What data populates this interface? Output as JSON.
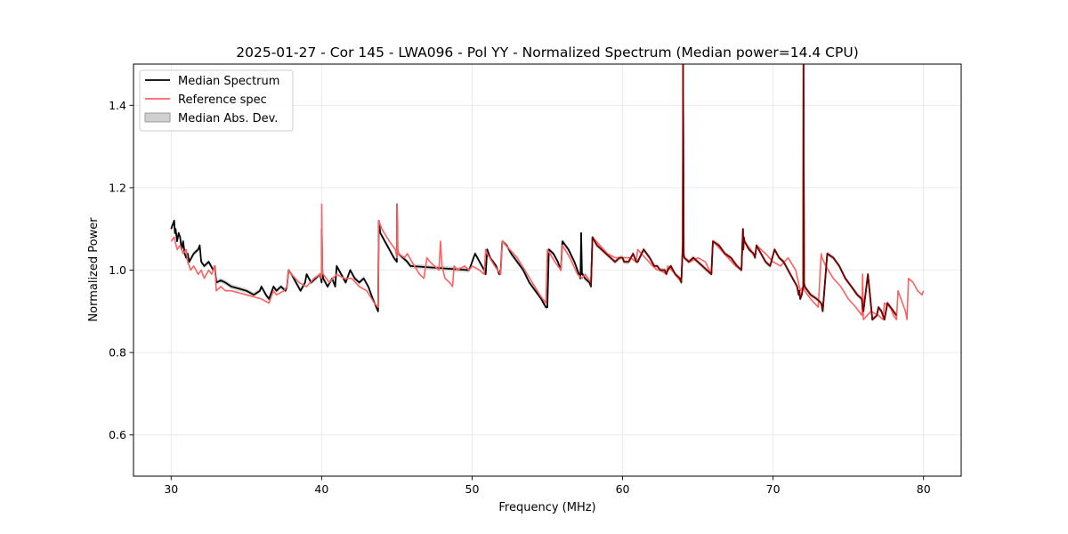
{
  "chart_data": {
    "type": "line",
    "title": "2025-01-27 - Cor 145 - LWA096 - Pol YY - Normalized Spectrum (Median power=14.4 CPU)",
    "xlabel": "Frequency (MHz)",
    "ylabel": "Normalized Power",
    "xlim": [
      27.5,
      82.5
    ],
    "ylim": [
      0.5,
      1.5
    ],
    "xticks": [
      30,
      40,
      50,
      60,
      70,
      80
    ],
    "yticks": [
      0.6,
      0.8,
      1.0,
      1.2,
      1.4
    ],
    "xtick_labels": [
      "30",
      "40",
      "50",
      "60",
      "70",
      "80"
    ],
    "ytick_labels": [
      "0.6",
      "0.8",
      "1.0",
      "1.2",
      "1.4"
    ],
    "grid": true,
    "legend_position": "top-left",
    "legend": {
      "median": "Median Spectrum",
      "reference": "Reference spec",
      "mad": "Median Abs. Dev."
    },
    "colors": {
      "median": "#000000",
      "reference": "#ff6060",
      "mad": "#b0b0b0",
      "overlap": "#7a0000"
    },
    "series": [
      {
        "name": "Median Spectrum",
        "x": [
          30.0,
          30.1,
          30.2,
          30.25,
          30.3,
          30.4,
          30.5,
          30.6,
          30.7,
          30.8,
          30.9,
          31.0,
          31.1,
          31.2,
          31.5,
          31.8,
          31.9,
          32.0,
          32.2,
          32.5,
          32.8,
          32.9,
          33.0,
          33.3,
          33.6,
          34.0,
          34.5,
          35.0,
          35.5,
          35.9,
          36.0,
          36.3,
          36.5,
          36.8,
          37.0,
          37.3,
          37.6,
          37.7,
          37.8,
          38.0,
          38.3,
          38.6,
          38.9,
          39.0,
          39.3,
          39.6,
          39.9,
          40.0,
          40.01,
          40.05,
          40.1,
          40.4,
          40.7,
          40.9,
          41.0,
          41.3,
          41.6,
          41.9,
          42.2,
          42.5,
          42.8,
          43.1,
          43.4,
          43.75,
          43.8,
          43.9,
          44.2,
          44.5,
          44.8,
          45.0,
          45.01,
          45.05,
          45.1,
          45.4,
          45.7,
          45.9,
          49.8,
          50.0,
          50.2,
          50.5,
          50.8,
          50.9,
          51.0,
          51.2,
          51.4,
          51.6,
          51.8,
          51.9,
          52.0,
          52.3,
          52.6,
          53.0,
          53.4,
          53.8,
          54.2,
          54.6,
          54.9,
          55.0,
          55.1,
          55.4,
          55.7,
          55.9,
          56.0,
          56.4,
          56.8,
          57.1,
          57.2,
          57.25,
          57.3,
          57.35,
          57.5,
          57.8,
          57.9,
          58.0,
          58.3,
          58.6,
          58.9,
          59.2,
          59.5,
          59.8,
          60.0,
          60.1,
          60.4,
          60.7,
          60.9,
          61.0,
          61.4,
          61.8,
          62.1,
          62.3,
          62.5,
          62.8,
          62.9,
          63.0,
          63.2,
          63.5,
          63.8,
          63.9,
          64.0,
          64.02,
          64.06,
          64.1,
          64.4,
          64.7,
          65.0,
          65.3,
          65.6,
          65.9,
          66.0,
          66.4,
          66.8,
          67.2,
          67.6,
          67.9,
          68.0,
          68.02,
          68.06,
          68.1,
          68.4,
          68.7,
          68.8,
          68.9,
          69.2,
          69.5,
          69.8,
          70.1,
          70.4,
          70.7,
          71.0,
          71.3,
          71.6,
          71.7,
          71.75,
          71.8,
          71.9,
          72.0,
          72.02,
          72.06,
          72.1,
          72.5,
          72.9,
          73.2,
          73.25,
          73.3,
          73.6,
          74.0,
          74.4,
          74.8,
          75.2,
          75.6,
          75.9,
          75.95,
          76.0,
          76.3,
          76.6,
          76.9,
          77.0,
          77.2,
          77.3,
          77.4,
          77.6,
          77.8,
          78.0,
          78.2
        ],
        "y": [
          1.1,
          1.11,
          1.12,
          1.09,
          1.1,
          1.07,
          1.09,
          1.08,
          1.05,
          1.07,
          1.04,
          1.03,
          1.04,
          1.02,
          1.04,
          1.05,
          1.06,
          1.02,
          1.01,
          1.02,
          1.0,
          1.01,
          0.97,
          0.975,
          0.97,
          0.96,
          0.955,
          0.95,
          0.94,
          0.95,
          0.96,
          0.94,
          0.93,
          0.96,
          0.95,
          0.96,
          0.95,
          0.96,
          1.0,
          0.99,
          0.97,
          0.95,
          0.97,
          0.99,
          0.97,
          0.98,
          0.99,
          0.97,
          1.1,
          1.0,
          0.98,
          0.96,
          0.98,
          0.96,
          1.01,
          0.99,
          0.97,
          1.0,
          0.98,
          0.97,
          0.98,
          0.96,
          0.93,
          0.9,
          1.12,
          1.09,
          1.07,
          1.05,
          1.03,
          1.02,
          1.16,
          1.05,
          1.04,
          1.03,
          1.02,
          1.01,
          1.0,
          1.02,
          1.04,
          1.02,
          1.0,
          0.99,
          1.05,
          1.03,
          1.02,
          1.01,
          0.99,
          1.0,
          1.07,
          1.06,
          1.04,
          1.02,
          1.0,
          0.97,
          0.95,
          0.93,
          0.91,
          0.91,
          1.05,
          1.04,
          1.02,
          1.0,
          1.07,
          1.05,
          1.02,
          0.99,
          0.98,
          1.09,
          0.99,
          0.99,
          0.98,
          0.97,
          0.96,
          1.08,
          1.06,
          1.05,
          1.04,
          1.03,
          1.02,
          1.03,
          1.03,
          1.02,
          1.02,
          1.04,
          1.02,
          1.02,
          1.05,
          1.03,
          1.01,
          1.01,
          1.0,
          1.0,
          0.99,
          1.0,
          1.01,
          0.99,
          0.98,
          0.97,
          1.06,
          1.5,
          1.04,
          1.03,
          1.02,
          1.03,
          1.02,
          1.01,
          1.0,
          0.99,
          1.07,
          1.06,
          1.04,
          1.03,
          1.01,
          1.0,
          1.1,
          1.05,
          1.08,
          1.07,
          1.05,
          1.04,
          1.03,
          1.06,
          1.04,
          1.02,
          1.01,
          1.05,
          1.03,
          1.02,
          1.0,
          0.98,
          0.96,
          0.94,
          0.95,
          0.93,
          0.94,
          0.96,
          1.5,
          0.97,
          0.96,
          0.94,
          0.93,
          0.92,
          0.91,
          0.9,
          1.04,
          1.03,
          1.01,
          0.98,
          0.96,
          0.94,
          0.93,
          0.91,
          0.9,
          0.99,
          0.88,
          0.89,
          0.91,
          0.9,
          0.89,
          0.88,
          0.92,
          0.91,
          0.9,
          0.89
        ]
      },
      {
        "name": "Reference spec",
        "x": [
          30.0,
          30.2,
          30.4,
          30.6,
          30.8,
          31.0,
          31.1,
          31.3,
          31.5,
          31.8,
          32.0,
          32.2,
          32.5,
          32.7,
          32.8,
          32.9,
          33.0,
          33.3,
          33.6,
          34.0,
          34.5,
          35.0,
          35.5,
          36.0,
          36.5,
          36.8,
          37.0,
          37.5,
          37.7,
          37.8,
          38.0,
          38.5,
          39.0,
          39.5,
          39.9,
          40.0,
          40.01,
          40.05,
          40.1,
          40.5,
          41.0,
          41.5,
          42.0,
          42.5,
          43.0,
          43.5,
          43.75,
          43.8,
          44.0,
          44.5,
          44.9,
          45.0,
          45.01,
          45.05,
          45.1,
          45.5,
          45.7,
          46.0,
          46.5,
          46.8,
          47.0,
          47.2,
          47.5,
          47.8,
          47.9,
          48.0,
          48.2,
          48.5,
          48.7,
          48.8,
          49.0,
          49.5,
          49.8,
          50.0,
          50.5,
          50.8,
          50.9,
          51.0,
          51.5,
          51.9,
          52.0,
          52.5,
          53.0,
          53.5,
          54.0,
          54.5,
          54.9,
          55.0,
          55.5,
          55.9,
          56.0,
          56.5,
          57.0,
          57.3,
          57.5,
          57.9,
          58.0,
          58.5,
          59.0,
          59.5,
          60.0,
          60.5,
          60.9,
          61.0,
          61.5,
          62.0,
          62.3,
          62.5,
          62.9,
          63.0,
          63.5,
          63.9,
          64.0,
          64.02,
          64.06,
          64.1,
          64.5,
          65.0,
          65.5,
          65.9,
          66.0,
          66.5,
          67.0,
          67.5,
          67.9,
          68.0,
          68.02,
          68.06,
          68.1,
          68.5,
          68.8,
          68.9,
          69.5,
          70.0,
          70.5,
          71.0,
          71.5,
          71.75,
          71.8,
          72.0,
          72.02,
          72.06,
          72.1,
          72.5,
          73.0,
          73.2,
          73.25,
          73.5,
          74.0,
          74.5,
          75.0,
          75.5,
          75.9,
          75.95,
          76.0,
          76.5,
          77.0,
          77.3,
          77.4,
          77.8,
          78.0,
          78.2,
          78.3,
          78.8,
          78.9,
          79.0,
          79.3,
          79.6,
          79.9,
          80.0
        ],
        "y": [
          1.07,
          1.08,
          1.05,
          1.06,
          1.04,
          1.05,
          1.02,
          1.0,
          1.01,
          0.99,
          1.0,
          0.98,
          1.0,
          0.99,
          1.0,
          1.01,
          0.95,
          0.96,
          0.95,
          0.95,
          0.945,
          0.94,
          0.935,
          0.93,
          0.92,
          0.95,
          0.94,
          0.95,
          0.96,
          1.0,
          0.99,
          0.97,
          0.96,
          0.98,
          0.99,
          0.98,
          1.16,
          1.0,
          0.99,
          0.97,
          0.99,
          0.98,
          0.98,
          0.96,
          0.95,
          0.92,
          0.91,
          1.12,
          1.1,
          1.07,
          1.05,
          1.03,
          1.16,
          1.05,
          1.04,
          1.03,
          1.04,
          1.02,
          0.99,
          0.98,
          1.03,
          1.02,
          1.01,
          1.0,
          1.07,
          1.01,
          0.98,
          0.97,
          0.96,
          1.01,
          1.0,
          1.01,
          1.0,
          1.01,
          1.0,
          0.99,
          1.05,
          1.04,
          1.01,
          0.99,
          1.07,
          1.05,
          1.03,
          1.0,
          0.97,
          0.94,
          0.92,
          1.05,
          1.02,
          1.0,
          1.06,
          1.03,
          0.99,
          0.98,
          0.99,
          0.97,
          1.08,
          1.06,
          1.04,
          1.03,
          1.03,
          1.03,
          1.02,
          1.05,
          1.03,
          1.01,
          1.0,
          1.0,
          0.99,
          1.01,
          0.99,
          0.97,
          1.06,
          1.5,
          1.04,
          1.03,
          1.02,
          1.03,
          1.02,
          0.99,
          1.07,
          1.05,
          1.03,
          1.01,
          1.0,
          1.1,
          1.05,
          1.08,
          1.07,
          1.05,
          1.03,
          1.06,
          1.04,
          1.02,
          1.01,
          1.03,
          1.0,
          0.96,
          0.95,
          0.96,
          1.5,
          0.97,
          0.95,
          0.93,
          0.91,
          1.04,
          1.03,
          1.01,
          0.98,
          0.96,
          0.93,
          0.91,
          0.89,
          0.99,
          0.88,
          0.9,
          0.89,
          0.88,
          0.92,
          0.91,
          0.89,
          0.88,
          0.95,
          0.9,
          0.88,
          0.98,
          0.97,
          0.95,
          0.94,
          0.95
        ]
      }
    ]
  }
}
